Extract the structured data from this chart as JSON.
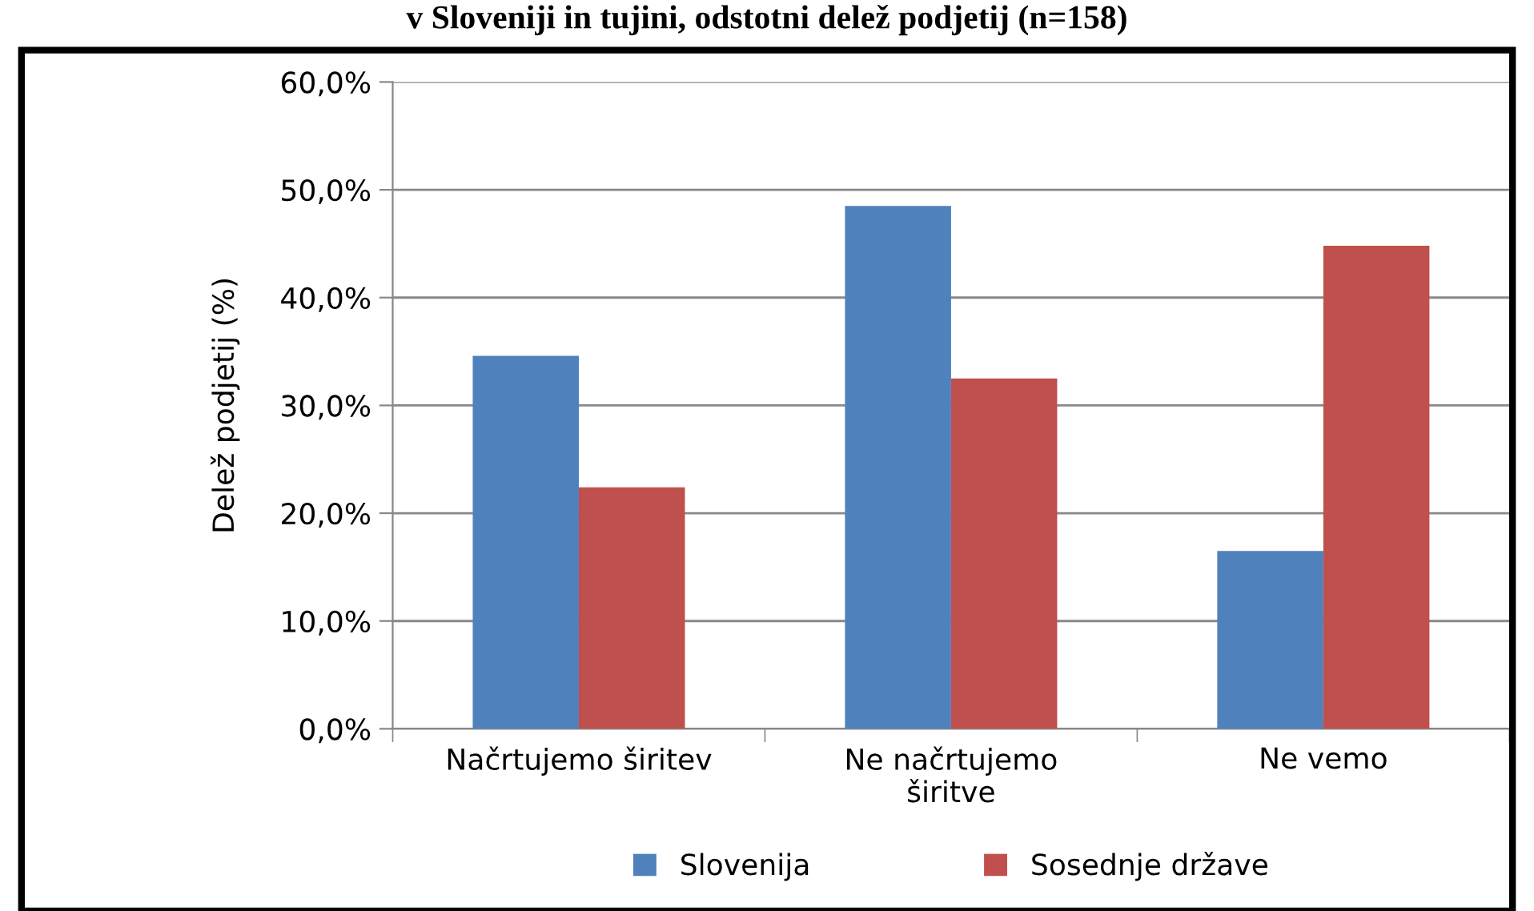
{
  "chart_data": {
    "type": "bar",
    "title": "v Sloveniji in tujini, odstotni delež podjetij (n=158)",
    "ylabel": "Delež podjetij (%)",
    "categories": [
      "Načrtujemo širitev",
      "Ne načrtujemo\nširitve",
      "Ne vemo"
    ],
    "series": [
      {
        "name": "Slovenija",
        "color": "#4f81bd",
        "values": [
          34.6,
          48.5,
          16.5
        ]
      },
      {
        "name": "Sosednje države",
        "color": "#c0504d",
        "values": [
          22.4,
          32.5,
          44.8
        ]
      }
    ],
    "ylim": [
      0,
      60
    ],
    "yticks": [
      {
        "value": 0,
        "label": "0,0%"
      },
      {
        "value": 10,
        "label": "10,0%"
      },
      {
        "value": 20,
        "label": "20,0%"
      },
      {
        "value": 30,
        "label": "30,0%"
      },
      {
        "value": 40,
        "label": "40,0%"
      },
      {
        "value": 50,
        "label": "50,0%"
      },
      {
        "value": 60,
        "label": "60,0%"
      }
    ],
    "grid": "y",
    "legend": "bottom"
  }
}
